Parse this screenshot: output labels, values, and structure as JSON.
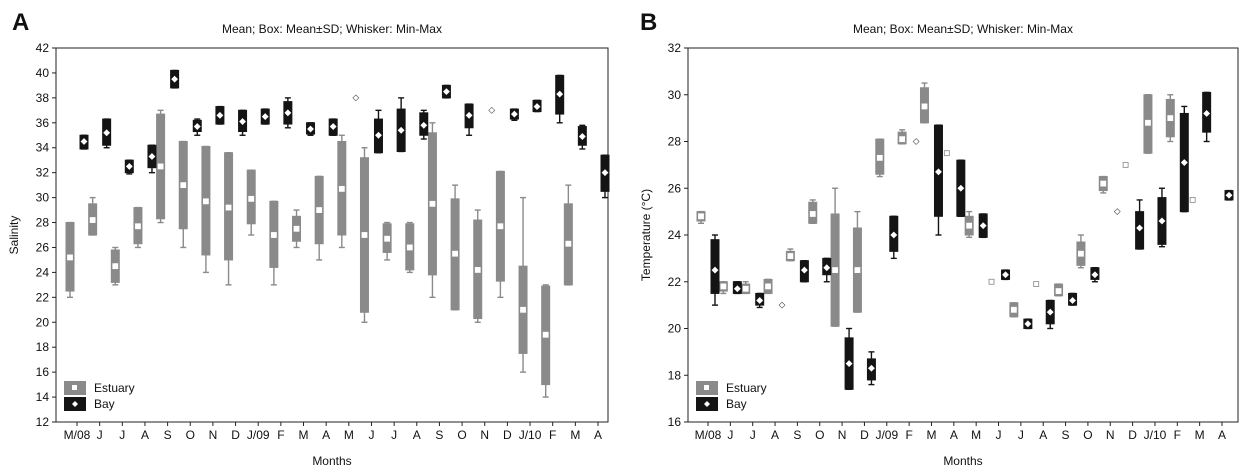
{
  "chart_data": [
    {
      "type": "box",
      "panel": "A",
      "title": "Mean; Box: Mean±SD; Whisker: Min-Max",
      "xlabel": "Months",
      "ylabel": "Salinity",
      "ylim": [
        12,
        42
      ],
      "yticks": [
        12,
        14,
        16,
        18,
        20,
        22,
        24,
        26,
        28,
        30,
        32,
        34,
        36,
        38,
        40,
        42
      ],
      "categories": [
        "M/08",
        "J",
        "J",
        "A",
        "S",
        "O",
        "N",
        "D",
        "J/09",
        "F",
        "M",
        "A",
        "M",
        "J",
        "J",
        "A",
        "S",
        "O",
        "N",
        "D",
        "J/10",
        "F",
        "M",
        "A"
      ],
      "legend": {
        "position": "bottom-left",
        "entries": [
          "Estuary",
          "Bay"
        ]
      },
      "colors": {
        "Estuary": "#8a8a8a",
        "Bay": "#141414",
        "estuary_marker": "#ffffff",
        "bay_marker": "#ffffff"
      },
      "series": [
        {
          "name": "Estuary",
          "mean": [
            25.2,
            28.2,
            24.5,
            27.7,
            32.5,
            31.0,
            29.7,
            29.2,
            29.9,
            27.0,
            27.5,
            29.0,
            30.7,
            27.0,
            26.7,
            26.0,
            29.5,
            25.5,
            24.2,
            27.7,
            21.0,
            19.0,
            26.3,
            null
          ],
          "sd_low": [
            22.5,
            27.0,
            23.2,
            26.3,
            28.3,
            27.5,
            25.4,
            25.0,
            27.9,
            24.4,
            26.5,
            26.3,
            27.0,
            20.8,
            25.6,
            24.2,
            23.8,
            21.0,
            20.3,
            23.3,
            17.5,
            15.0,
            23.0,
            null
          ],
          "sd_high": [
            28.0,
            29.5,
            25.8,
            29.2,
            36.7,
            34.5,
            34.1,
            33.6,
            32.2,
            29.7,
            28.5,
            31.7,
            34.5,
            33.2,
            27.9,
            27.9,
            35.2,
            29.9,
            28.2,
            32.1,
            24.5,
            22.9,
            29.5,
            null
          ],
          "min": [
            22.0,
            27.0,
            23.0,
            26.0,
            28.0,
            26.0,
            24.0,
            23.0,
            27.0,
            23.0,
            26.0,
            25.0,
            26.0,
            20.0,
            25.0,
            24.0,
            22.0,
            21.0,
            20.0,
            22.0,
            16.0,
            14.0,
            23.0,
            null
          ],
          "max": [
            28.0,
            30.0,
            26.0,
            29.2,
            37.0,
            34.5,
            34.1,
            33.6,
            32.2,
            29.7,
            29.0,
            31.7,
            35.0,
            34.0,
            28.0,
            28.0,
            36.0,
            31.0,
            29.0,
            32.1,
            30.0,
            23.0,
            31.0,
            null
          ]
        },
        {
          "name": "Bay",
          "mean": [
            34.5,
            35.2,
            32.5,
            33.3,
            39.5,
            35.7,
            36.6,
            36.1,
            36.5,
            36.8,
            35.5,
            35.7,
            38.0,
            35.0,
            35.4,
            35.8,
            38.5,
            36.6,
            37.0,
            36.7,
            37.3,
            38.3,
            34.9,
            32.0
          ],
          "sd_low": [
            33.9,
            34.2,
            32.0,
            32.4,
            38.8,
            35.3,
            35.9,
            35.3,
            35.9,
            35.9,
            35.1,
            35.0,
            null,
            33.6,
            33.7,
            35.0,
            38.0,
            35.6,
            null,
            36.3,
            36.9,
            36.7,
            34.2,
            30.5
          ],
          "sd_high": [
            35.0,
            36.3,
            33.0,
            34.2,
            40.2,
            36.2,
            37.3,
            37.0,
            37.1,
            37.7,
            36.0,
            36.3,
            null,
            36.3,
            37.1,
            36.8,
            39.0,
            37.5,
            null,
            37.1,
            37.8,
            39.8,
            35.7,
            33.4
          ],
          "min": [
            33.9,
            34.0,
            31.9,
            32.0,
            38.8,
            35.0,
            35.9,
            35.0,
            35.9,
            35.6,
            35.0,
            35.0,
            38.0,
            33.6,
            33.7,
            34.7,
            38.0,
            35.0,
            37.0,
            36.2,
            36.9,
            36.0,
            33.9,
            30.0
          ],
          "max": [
            35.0,
            36.3,
            33.0,
            34.2,
            40.2,
            36.3,
            37.3,
            37.0,
            37.1,
            38.0,
            36.0,
            36.3,
            38.0,
            37.0,
            38.0,
            37.0,
            39.0,
            37.5,
            37.0,
            37.1,
            37.8,
            39.8,
            35.8,
            33.4
          ]
        }
      ]
    },
    {
      "type": "box",
      "panel": "B",
      "title": "Mean; Box: Mean±SD; Whisker: Min-Max",
      "xlabel": "Months",
      "ylabel": "Temperature (°C)",
      "ylim": [
        16,
        32
      ],
      "yticks": [
        16,
        18,
        20,
        22,
        24,
        26,
        28,
        30,
        32
      ],
      "categories": [
        "M/08",
        "J",
        "J",
        "A",
        "S",
        "O",
        "N",
        "D",
        "J/09",
        "F",
        "M",
        "A",
        "M",
        "J",
        "J",
        "A",
        "S",
        "O",
        "N",
        "D",
        "J/10",
        "F",
        "M",
        "A"
      ],
      "legend": {
        "position": "bottom-left",
        "entries": [
          "Estuary",
          "Bay"
        ]
      },
      "colors": {
        "Estuary": "#8a8a8a",
        "Bay": "#141414",
        "estuary_marker": "#ffffff",
        "bay_marker": "#ffffff"
      },
      "series": [
        {
          "name": "Estuary",
          "mean": [
            24.8,
            21.8,
            21.7,
            21.8,
            23.1,
            24.9,
            22.5,
            22.5,
            27.3,
            28.1,
            29.5,
            27.5,
            24.4,
            22.0,
            20.8,
            21.9,
            21.6,
            23.2,
            26.2,
            27.0,
            28.8,
            29.0,
            25.5,
            null
          ],
          "sd_low": [
            24.6,
            21.6,
            21.5,
            21.5,
            22.9,
            24.5,
            20.1,
            20.7,
            26.6,
            27.9,
            28.8,
            null,
            24.0,
            null,
            20.5,
            null,
            21.4,
            22.7,
            25.9,
            null,
            27.5,
            28.2,
            null,
            null
          ],
          "sd_high": [
            25.0,
            22.0,
            21.9,
            22.1,
            23.3,
            25.4,
            24.9,
            24.3,
            28.1,
            28.4,
            30.3,
            null,
            24.8,
            null,
            21.1,
            null,
            21.9,
            23.7,
            26.5,
            null,
            30.0,
            29.8,
            null,
            null
          ],
          "min": [
            24.5,
            21.5,
            21.5,
            21.5,
            22.9,
            24.5,
            20.1,
            20.7,
            26.5,
            27.9,
            28.8,
            27.5,
            23.9,
            22.0,
            20.5,
            21.9,
            21.4,
            22.6,
            25.8,
            27.0,
            27.5,
            28.0,
            25.5,
            null
          ],
          "max": [
            25.0,
            22.0,
            22.0,
            22.1,
            23.4,
            25.5,
            26.0,
            25.0,
            28.1,
            28.5,
            30.5,
            27.5,
            25.0,
            22.0,
            21.1,
            21.9,
            21.9,
            24.0,
            26.5,
            27.0,
            30.0,
            30.0,
            25.5,
            null
          ]
        },
        {
          "name": "Bay",
          "mean": [
            22.5,
            21.7,
            21.2,
            21.0,
            22.5,
            22.6,
            18.5,
            18.3,
            24.0,
            28.0,
            26.7,
            26.0,
            24.4,
            22.3,
            20.2,
            20.7,
            21.2,
            22.3,
            25.0,
            24.3,
            24.6,
            27.1,
            29.2,
            25.7
          ],
          "sd_low": [
            21.5,
            21.5,
            21.0,
            null,
            22.0,
            22.3,
            17.4,
            17.8,
            23.3,
            null,
            24.8,
            24.8,
            23.9,
            22.1,
            20.0,
            20.2,
            21.0,
            22.1,
            null,
            23.4,
            23.6,
            25.0,
            28.4,
            25.5
          ],
          "sd_high": [
            23.8,
            22.0,
            21.5,
            null,
            22.9,
            23.0,
            19.6,
            18.7,
            24.8,
            null,
            28.7,
            27.2,
            24.9,
            22.5,
            20.4,
            21.2,
            21.5,
            22.6,
            null,
            25.0,
            25.6,
            29.2,
            30.1,
            25.9
          ],
          "min": [
            21.0,
            21.5,
            20.9,
            21.0,
            22.0,
            22.0,
            17.4,
            17.6,
            23.0,
            28.0,
            24.0,
            24.8,
            23.9,
            22.1,
            20.0,
            20.0,
            21.0,
            22.0,
            25.0,
            23.4,
            23.5,
            25.0,
            28.0,
            25.5
          ],
          "max": [
            24.0,
            22.0,
            21.5,
            21.0,
            22.9,
            23.0,
            20.0,
            19.0,
            24.8,
            28.0,
            28.7,
            27.2,
            24.9,
            22.5,
            20.4,
            21.2,
            21.5,
            22.6,
            25.0,
            25.5,
            26.0,
            29.5,
            30.1,
            25.9
          ]
        }
      ]
    }
  ]
}
